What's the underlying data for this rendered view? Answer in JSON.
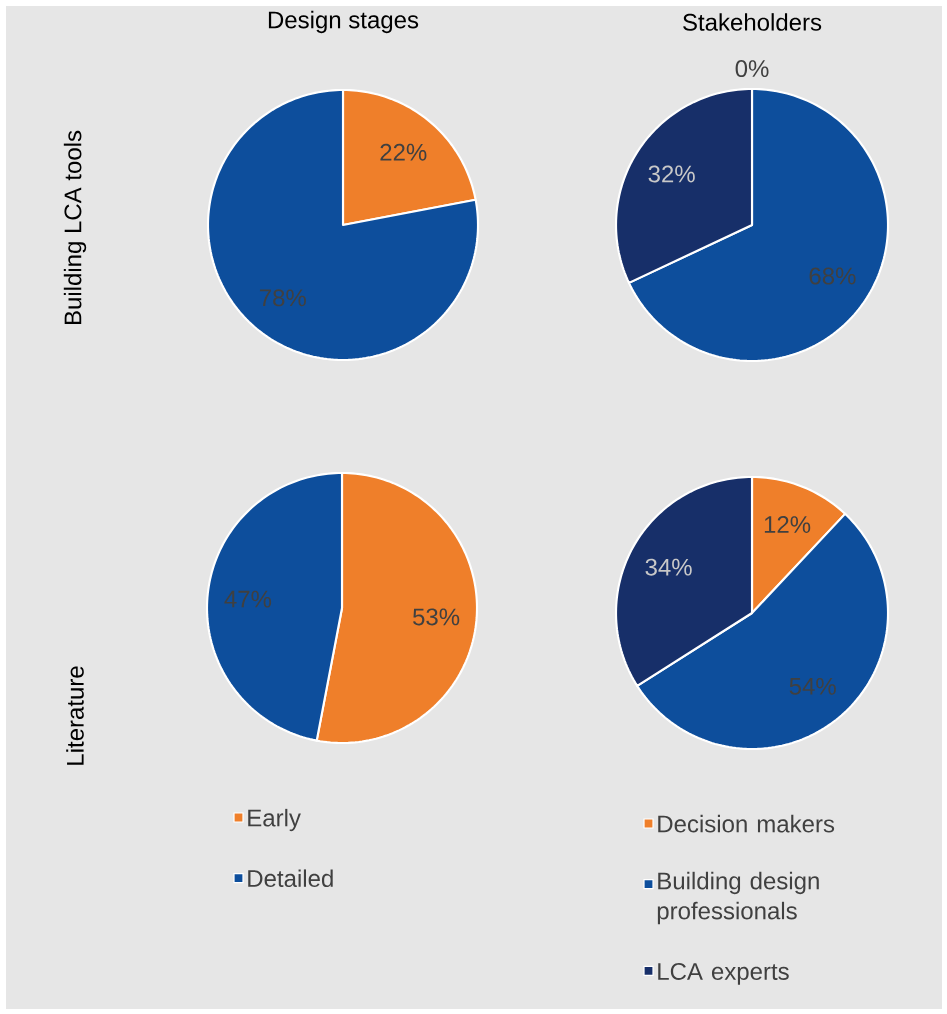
{
  "chart_data": [
    {
      "type": "pie",
      "title": "Design stages",
      "ylabel": "Building LCA tools",
      "categories": [
        null,
        null
      ],
      "values": [
        22,
        78
      ],
      "colors": [
        "#ef7f2a",
        "#0d4e9c"
      ],
      "value_labels": [
        "22%",
        "78%"
      ]
    },
    {
      "type": "pie",
      "title": "Stakeholders",
      "categories": [
        null,
        null,
        null
      ],
      "values": [
        0,
        68,
        32
      ],
      "colors": [
        "#ef7f2a",
        "#0d4e9c",
        "#172f69"
      ],
      "value_labels": [
        "0%",
        "68%",
        "32%"
      ]
    },
    {
      "type": "pie",
      "ylabel": "Literature",
      "categories": [
        "Early",
        "Detailed"
      ],
      "values": [
        53,
        47
      ],
      "colors": [
        "#ef7f2a",
        "#0d4e9c"
      ],
      "value_labels": [
        "53%",
        "47%"
      ],
      "legend": "bottom"
    },
    {
      "type": "pie",
      "categories": [
        "Decision makers",
        "Building design professionals",
        "LCA experts"
      ],
      "values": [
        12,
        54,
        34
      ],
      "colors": [
        "#ef7f2a",
        "#0d4e9c",
        "#172f69"
      ],
      "value_labels": [
        "12%",
        "54%",
        "34%"
      ],
      "legend": "bottom"
    }
  ]
}
